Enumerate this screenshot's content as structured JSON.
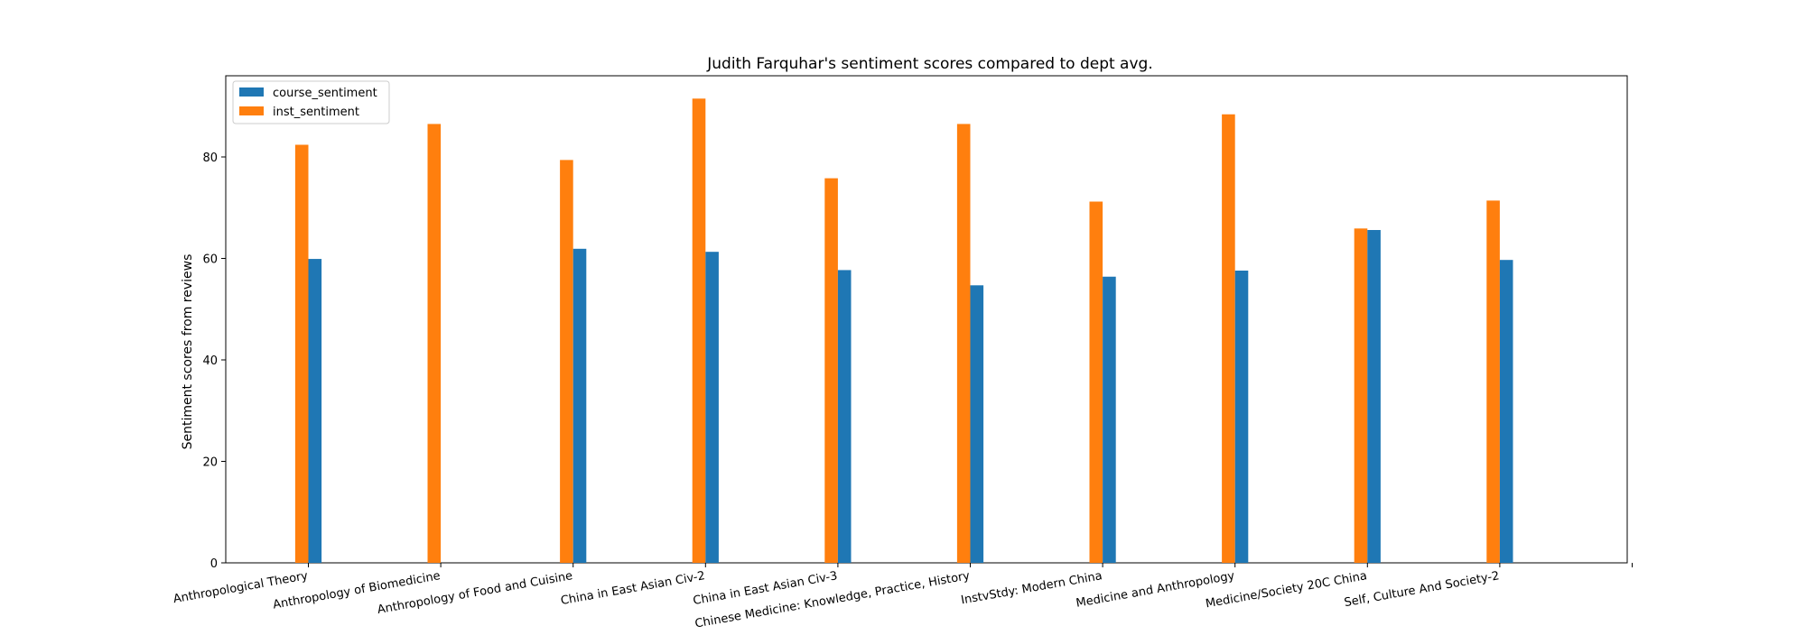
{
  "chart_data": {
    "type": "bar",
    "title": "Judith Farquhar's sentiment scores compared to dept avg.",
    "xlabel": "",
    "ylabel": "Sentiment scores from reviews",
    "ylim": [
      0,
      96
    ],
    "yticks": [
      0,
      20,
      40,
      60,
      80
    ],
    "grid": false,
    "legend_position": "upper-left",
    "categories": [
      "Anthropological Theory",
      "Anthropology of Biomedicine",
      "Anthropology of Food and Cuisine",
      "China in East Asian Civ-2",
      "China in East Asian Civ-3",
      "Chinese Medicine: Knowledge, Practice, History",
      "InstvStdy: Modern China",
      "Medicine and Anthropology",
      "Medicine/Society 20C China",
      "Self, Culture And Society-2"
    ],
    "series": [
      {
        "name": "course_sentiment",
        "color": "#1f77b4",
        "values": [
          59.9,
          null,
          61.9,
          61.3,
          57.7,
          54.7,
          56.4,
          57.6,
          65.6,
          59.7
        ]
      },
      {
        "name": "inst_sentiment",
        "color": "#ff7f0e",
        "values": [
          82.4,
          86.5,
          79.4,
          91.5,
          75.8,
          86.5,
          71.2,
          88.4,
          65.9,
          71.4
        ]
      }
    ]
  }
}
